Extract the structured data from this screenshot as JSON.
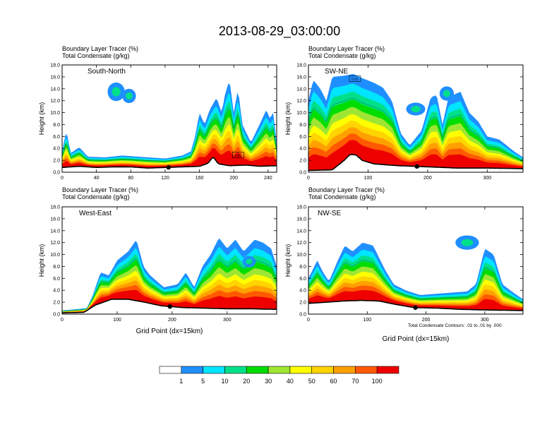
{
  "title": "2013-08-29_03:00:00",
  "colors": {
    "levels": [
      "#ffffff",
      "#1f8fff",
      "#00e5ff",
      "#00e08a",
      "#00dd00",
      "#9ee633",
      "#ffff00",
      "#ffd400",
      "#ffa000",
      "#ff5a00",
      "#ee0000"
    ],
    "contour": "#000000",
    "terrain": "#000000"
  },
  "colorbar": {
    "labels": [
      "1",
      "5",
      "10",
      "20",
      "30",
      "40",
      "50",
      "60",
      "70",
      "100"
    ]
  },
  "chart_data": [
    {
      "type": "heatmap",
      "name": "South-North",
      "subtitle_1": "Boundary Layer Tracer    (%)",
      "subtitle_2": "Total Condensate    (g/kg)",
      "ylabel": "Height (km)",
      "xlabel": "",
      "xlim": [
        0,
        250
      ],
      "ylim": [
        0,
        18
      ],
      "xticks": [
        0,
        40,
        80,
        120,
        160,
        200,
        240
      ],
      "yticks": [
        "0.0",
        "2.0",
        "4.0",
        "6.0",
        "8.0",
        "10.0",
        "12.0",
        "14.0",
        "16.0",
        "18.0"
      ],
      "marker_x": 124,
      "box_labels": [
        {
          "x": 205,
          "y": 2.9,
          "text": "0.01"
        }
      ],
      "terrain": [
        [
          0,
          0.8
        ],
        [
          20,
          1.0
        ],
        [
          40,
          0.8
        ],
        [
          60,
          0.9
        ],
        [
          80,
          0.9
        ],
        [
          100,
          0.7
        ],
        [
          120,
          0.8
        ],
        [
          140,
          0.9
        ],
        [
          160,
          1.0
        ],
        [
          170,
          1.5
        ],
        [
          176,
          2.6
        ],
        [
          182,
          1.4
        ],
        [
          195,
          1.1
        ],
        [
          215,
          1.2
        ],
        [
          230,
          1.0
        ],
        [
          250,
          1.1
        ]
      ],
      "profile": [
        [
          0,
          3.6
        ],
        [
          5,
          7.0
        ],
        [
          10,
          3.2
        ],
        [
          20,
          4.2
        ],
        [
          30,
          2.6
        ],
        [
          50,
          2.5
        ],
        [
          70,
          2.8
        ],
        [
          100,
          2.5
        ],
        [
          120,
          2.3
        ],
        [
          140,
          2.8
        ],
        [
          150,
          3.5
        ],
        [
          155,
          6.0
        ],
        [
          160,
          10.0
        ],
        [
          166,
          8.0
        ],
        [
          172,
          10.5
        ],
        [
          180,
          12.5
        ],
        [
          186,
          10.0
        ],
        [
          190,
          13.2
        ],
        [
          195,
          15.5
        ],
        [
          200,
          10.0
        ],
        [
          205,
          14.0
        ],
        [
          210,
          8.0
        ],
        [
          220,
          5.0
        ],
        [
          230,
          8.0
        ],
        [
          238,
          10.5
        ],
        [
          242,
          9.0
        ],
        [
          246,
          10.0
        ],
        [
          250,
          5.0
        ]
      ],
      "blobs": [
        [
          63,
          13.5,
          5,
          1.3
        ],
        [
          78,
          12.8,
          4,
          1.0
        ]
      ]
    },
    {
      "type": "heatmap",
      "name": "SW-NE",
      "subtitle_1": "Boundary Layer Tracer    (%)",
      "subtitle_2": "Total Condensate    (g/kg)",
      "ylabel": "Height (km)",
      "xlabel": "",
      "xlim": [
        0,
        360
      ],
      "ylim": [
        0,
        18
      ],
      "xticks": [
        0,
        100,
        200,
        300
      ],
      "yticks": [
        "0.0",
        "2.0",
        "4.0",
        "6.0",
        "8.0",
        "10.0",
        "12.0",
        "14.0",
        "16.0",
        "18.0"
      ],
      "marker_x": 182,
      "box_labels": [
        {
          "x": 78,
          "y": 15.7,
          "text": "0.01"
        }
      ],
      "terrain": [
        [
          0,
          0.3
        ],
        [
          40,
          0.4
        ],
        [
          60,
          2.0
        ],
        [
          70,
          3.0
        ],
        [
          80,
          2.9
        ],
        [
          90,
          2.0
        ],
        [
          110,
          1.4
        ],
        [
          150,
          1.1
        ],
        [
          200,
          0.9
        ],
        [
          250,
          0.7
        ],
        [
          300,
          0.7
        ],
        [
          360,
          0.6
        ]
      ],
      "profile": [
        [
          0,
          12.0
        ],
        [
          8,
          15.5
        ],
        [
          20,
          14.0
        ],
        [
          30,
          12.0
        ],
        [
          40,
          16.0
        ],
        [
          60,
          16.2
        ],
        [
          75,
          16.5
        ],
        [
          90,
          15.8
        ],
        [
          110,
          15.0
        ],
        [
          125,
          14.2
        ],
        [
          140,
          12.0
        ],
        [
          155,
          6.5
        ],
        [
          170,
          4.5
        ],
        [
          190,
          7.0
        ],
        [
          205,
          12.5
        ],
        [
          215,
          13.0
        ],
        [
          225,
          8.0
        ],
        [
          235,
          12.6
        ],
        [
          255,
          13.5
        ],
        [
          270,
          10.0
        ],
        [
          285,
          8.5
        ],
        [
          300,
          6.0
        ],
        [
          320,
          5.5
        ],
        [
          345,
          3.5
        ],
        [
          360,
          2.5
        ]
      ],
      "blobs": [
        [
          180,
          10.6,
          8,
          0.9
        ],
        [
          232,
          13.2,
          6,
          1.0
        ]
      ]
    },
    {
      "type": "heatmap",
      "name": "West-East",
      "subtitle_1": "Boundary Layer Tracer    (%)",
      "subtitle_2": "Total Condensate    (g/kg)",
      "ylabel": "Height (km)",
      "xlabel": "Grid Point (dx=15km)",
      "xlim": [
        0,
        390
      ],
      "ylim": [
        0,
        18
      ],
      "xticks": [
        0,
        100,
        200,
        300
      ],
      "yticks": [
        "0.0",
        "2.0",
        "4.0",
        "6.0",
        "8.0",
        "10.0",
        "12.0",
        "14.0",
        "16.0",
        "18.0"
      ],
      "marker_x": 196,
      "box_labels": [],
      "terrain": [
        [
          0,
          0.2
        ],
        [
          40,
          0.3
        ],
        [
          60,
          1.5
        ],
        [
          90,
          2.5
        ],
        [
          120,
          2.5
        ],
        [
          150,
          2.0
        ],
        [
          180,
          1.4
        ],
        [
          220,
          1.1
        ],
        [
          260,
          1.0
        ],
        [
          300,
          0.9
        ],
        [
          340,
          0.9
        ],
        [
          390,
          0.8
        ]
      ],
      "profile": [
        [
          0,
          0.6
        ],
        [
          45,
          1.0
        ],
        [
          55,
          3.0
        ],
        [
          70,
          7.0
        ],
        [
          85,
          6.5
        ],
        [
          100,
          9.0
        ],
        [
          120,
          10.5
        ],
        [
          135,
          12.5
        ],
        [
          148,
          8.0
        ],
        [
          160,
          6.5
        ],
        [
          185,
          4.5
        ],
        [
          210,
          5.0
        ],
        [
          225,
          7.0
        ],
        [
          240,
          4.5
        ],
        [
          255,
          8.0
        ],
        [
          270,
          10.0
        ],
        [
          285,
          12.8
        ],
        [
          300,
          11.0
        ],
        [
          315,
          12.5
        ],
        [
          330,
          10.5
        ],
        [
          350,
          12.5
        ],
        [
          365,
          12.0
        ],
        [
          380,
          11.0
        ],
        [
          390,
          8.0
        ]
      ],
      "blobs": [
        [
          340,
          8.8,
          6,
          0.8
        ]
      ]
    },
    {
      "type": "heatmap",
      "name": "NW-SE",
      "subtitle_1": "Boundary Layer Tracer    (%)",
      "subtitle_2": "Total Condensate    (g/kg)",
      "ylabel": "Height (km)",
      "xlabel": "Grid Point (dx=15km)",
      "xlim": [
        0,
        365
      ],
      "ylim": [
        0,
        18
      ],
      "xticks": [
        0,
        100,
        200,
        300
      ],
      "yticks": [
        "0.0",
        "2.0",
        "4.0",
        "6.0",
        "8.0",
        "10.0",
        "12.0",
        "14.0",
        "16.0",
        "18.0"
      ],
      "marker_x": 182,
      "box_labels": [],
      "terrain": [
        [
          0,
          1.8
        ],
        [
          30,
          2.0
        ],
        [
          60,
          2.2
        ],
        [
          90,
          2.3
        ],
        [
          120,
          2.2
        ],
        [
          150,
          1.6
        ],
        [
          180,
          1.1
        ],
        [
          220,
          1.0
        ],
        [
          260,
          0.8
        ],
        [
          300,
          0.7
        ],
        [
          365,
          0.6
        ]
      ],
      "profile": [
        [
          0,
          6.0
        ],
        [
          15,
          9.0
        ],
        [
          25,
          7.0
        ],
        [
          35,
          5.5
        ],
        [
          50,
          9.0
        ],
        [
          62,
          11.5
        ],
        [
          75,
          10.5
        ],
        [
          92,
          12.0
        ],
        [
          110,
          11.5
        ],
        [
          130,
          7.5
        ],
        [
          145,
          5.0
        ],
        [
          165,
          4.0
        ],
        [
          190,
          3.2
        ],
        [
          230,
          3.5
        ],
        [
          270,
          3.8
        ],
        [
          285,
          5.0
        ],
        [
          300,
          11.0
        ],
        [
          315,
          10.0
        ],
        [
          330,
          5.0
        ],
        [
          350,
          3.5
        ],
        [
          365,
          2.5
        ]
      ],
      "blobs": [
        [
          270,
          12.0,
          10,
          1.0
        ]
      ],
      "note": "Total Condensate Contours: .01 to .01 by .000"
    }
  ]
}
